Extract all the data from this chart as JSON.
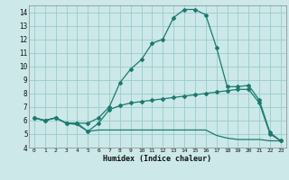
{
  "xlabel": "Humidex (Indice chaleur)",
  "background_color": "#cce8e8",
  "grid_color": "#99cccc",
  "line_color": "#1a7a6e",
  "x_values": [
    0,
    1,
    2,
    3,
    4,
    5,
    6,
    7,
    8,
    9,
    10,
    11,
    12,
    13,
    14,
    15,
    16,
    17,
    18,
    19,
    20,
    21,
    22,
    23
  ],
  "curve1": [
    6.2,
    6.0,
    6.2,
    5.8,
    5.8,
    5.8,
    6.2,
    7.0,
    8.8,
    9.8,
    10.5,
    11.7,
    12.0,
    13.6,
    14.2,
    14.2,
    13.8,
    11.4,
    8.5,
    8.5,
    8.6,
    7.5,
    5.1,
    4.5
  ],
  "curve2": [
    6.2,
    6.0,
    6.2,
    5.8,
    5.8,
    5.2,
    5.8,
    6.8,
    7.1,
    7.3,
    7.4,
    7.5,
    7.6,
    7.7,
    7.8,
    7.9,
    8.0,
    8.1,
    8.2,
    8.3,
    8.3,
    7.3,
    5.0,
    4.5
  ],
  "curve3": [
    6.2,
    6.0,
    6.2,
    5.8,
    5.7,
    5.2,
    5.3,
    5.3,
    5.3,
    5.3,
    5.3,
    5.3,
    5.3,
    5.3,
    5.3,
    5.3,
    5.3,
    4.9,
    4.7,
    4.6,
    4.6,
    4.6,
    4.5,
    4.5
  ],
  "ylim": [
    4,
    14.5
  ],
  "xlim": [
    -0.5,
    23.5
  ],
  "yticks": [
    4,
    5,
    6,
    7,
    8,
    9,
    10,
    11,
    12,
    13,
    14
  ],
  "xticks": [
    0,
    1,
    2,
    3,
    4,
    5,
    6,
    7,
    8,
    9,
    10,
    11,
    12,
    13,
    14,
    15,
    16,
    17,
    18,
    19,
    20,
    21,
    22,
    23
  ],
  "xtick_labels": [
    "0",
    "1",
    "2",
    "3",
    "4",
    "5",
    "6",
    "7",
    "8",
    "9",
    "10",
    "11",
    "12",
    "13",
    "14",
    "15",
    "16",
    "17",
    "18",
    "19",
    "20",
    "21",
    "22",
    "23"
  ]
}
